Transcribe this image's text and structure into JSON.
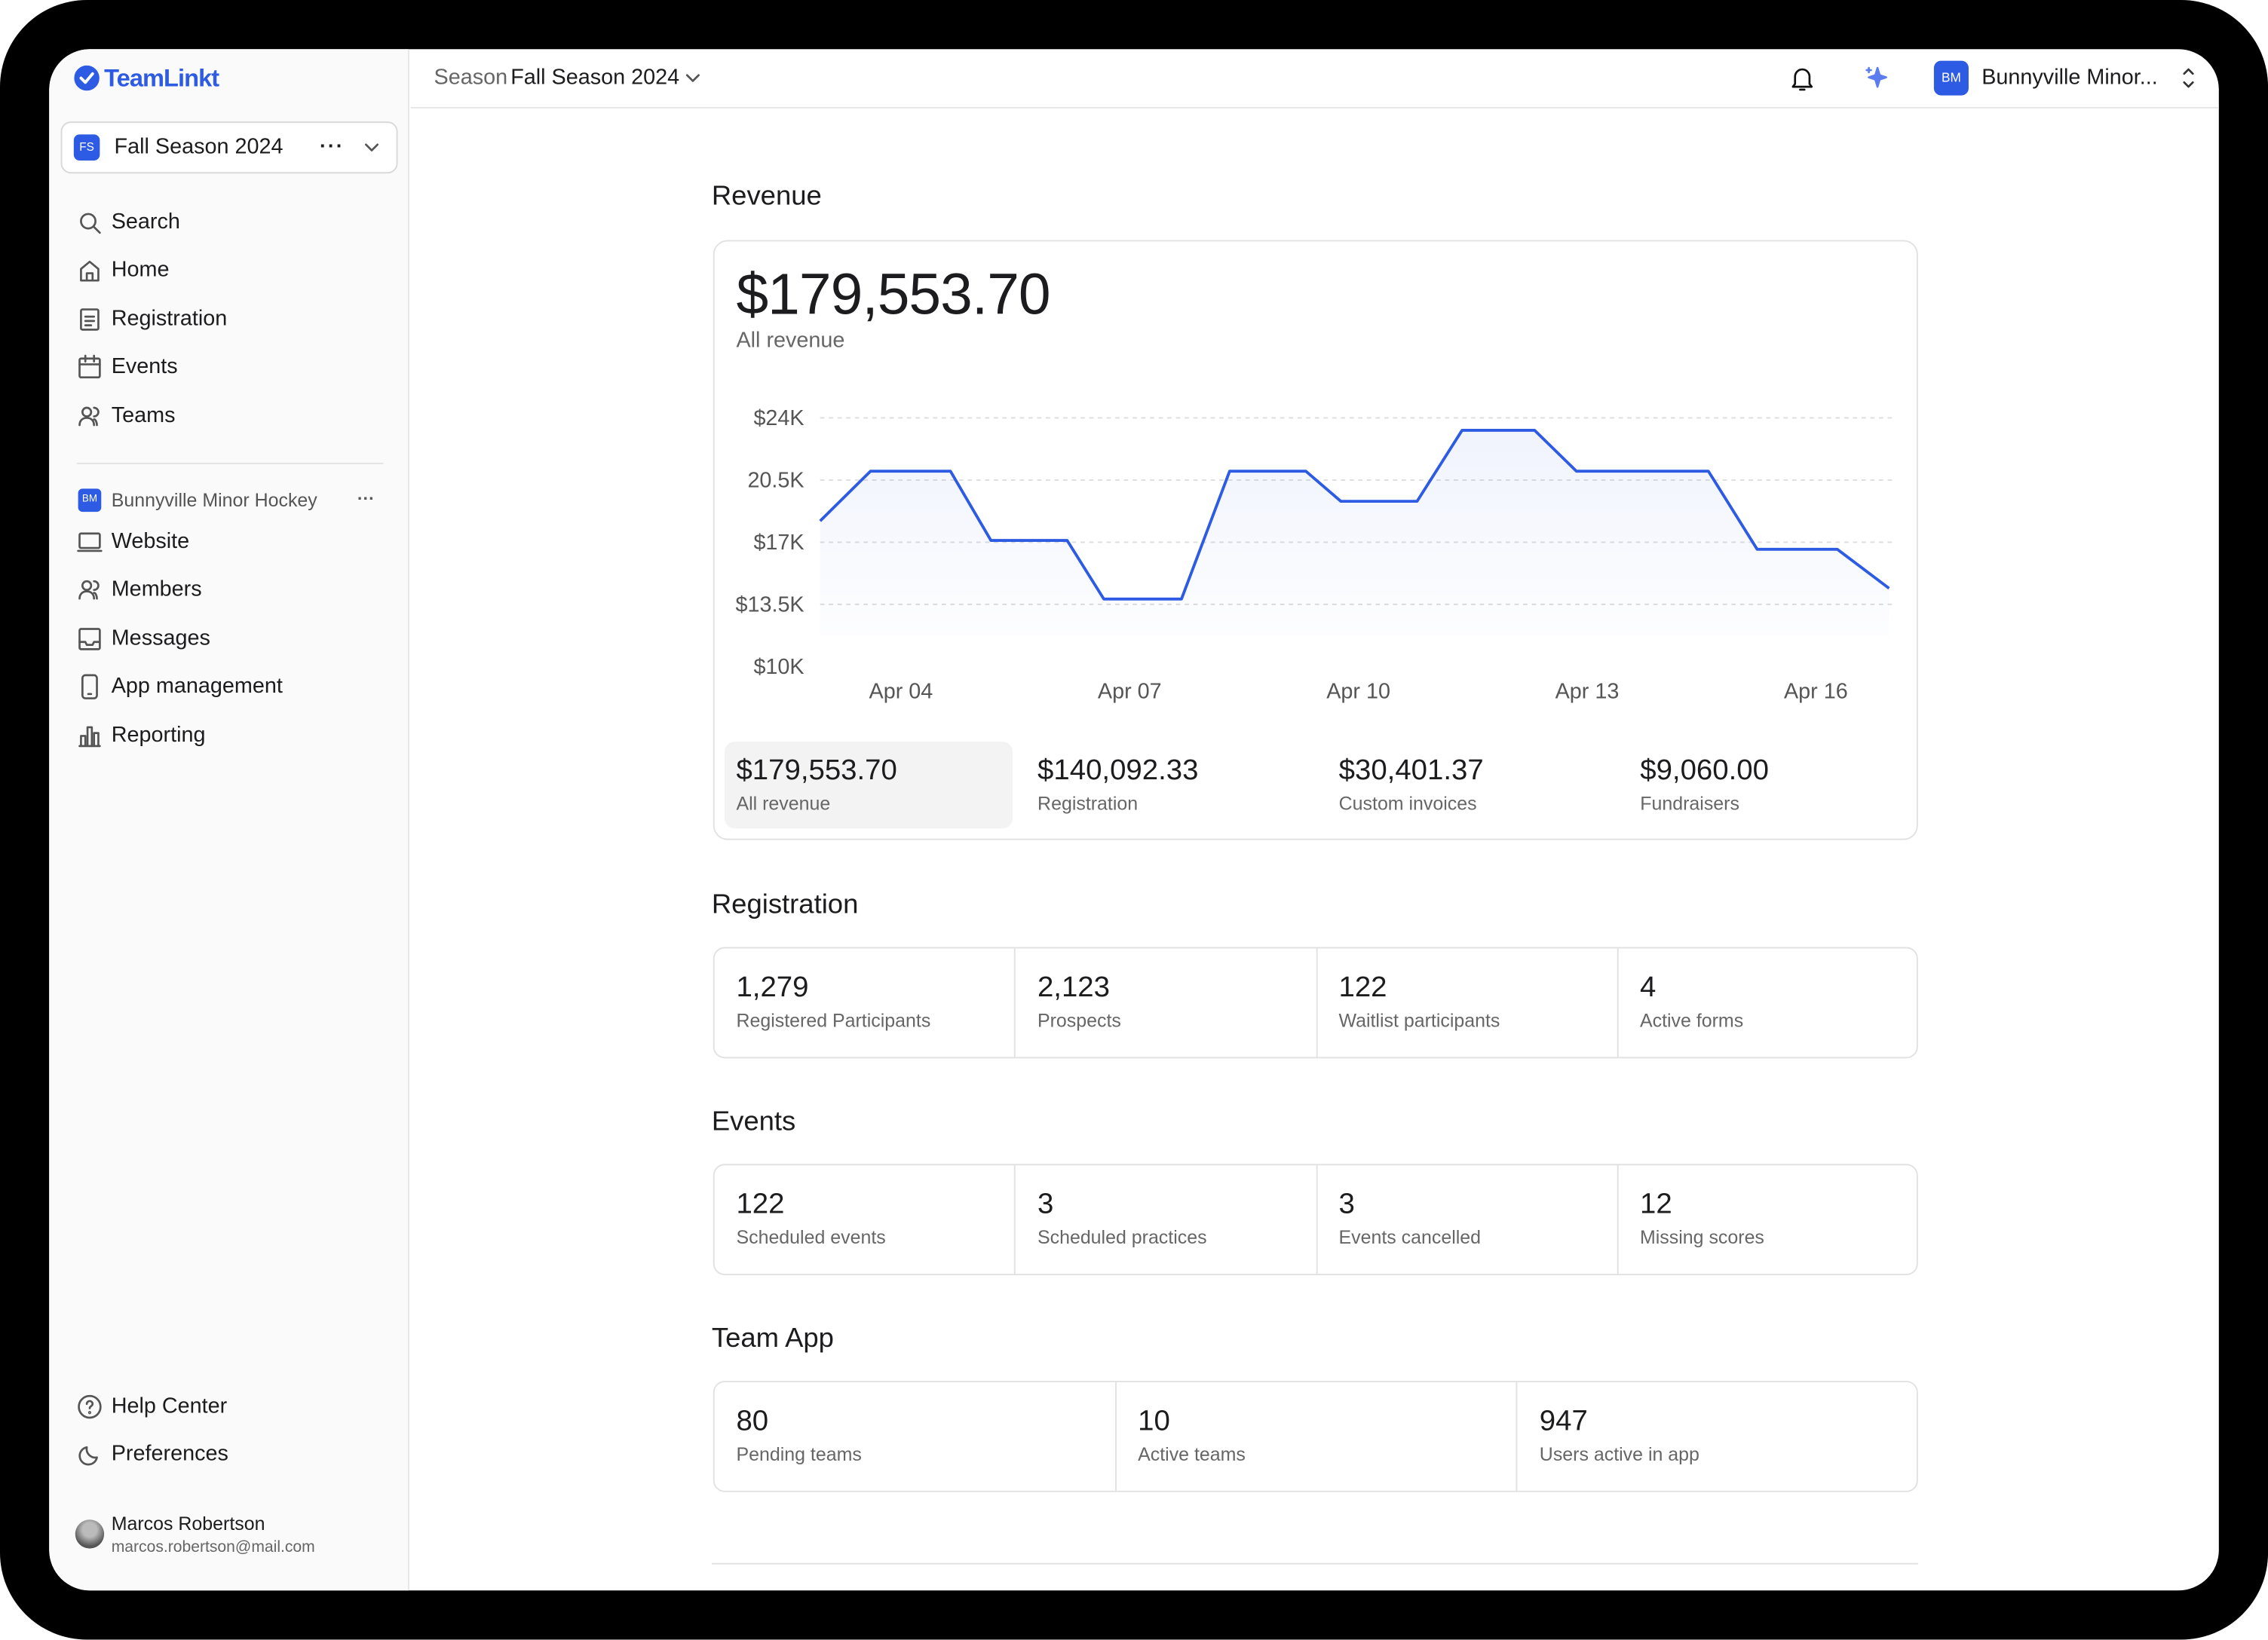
{
  "app": {
    "logo": "TeamLinkt",
    "season_label": "Season",
    "season": "Fall Season 2024",
    "org_initials": "BM",
    "org": "Bunnyville Minor..."
  },
  "sidebar": {
    "season_badge": "FS",
    "season": "Fall Season 2024",
    "nav": [
      "Search",
      "Home",
      "Registration",
      "Events",
      "Teams"
    ],
    "org_badge": "BM",
    "org_name": "Bunnyville Minor Hockey",
    "org_nav": [
      "Website",
      "Members",
      "Messages",
      "App management",
      "Reporting"
    ],
    "footer_nav": [
      "Help Center",
      "Preferences"
    ],
    "user": {
      "name": "Marcos Robertson",
      "email": "marcos.robertson@mail.com"
    }
  },
  "revenue": {
    "title": "Revenue",
    "total": "$179,553.70",
    "total_label": "All revenue",
    "breakdown": [
      {
        "value": "$179,553.70",
        "label": "All revenue"
      },
      {
        "value": "$140,092.33",
        "label": "Registration"
      },
      {
        "value": "$30,401.37",
        "label": "Custom invoices"
      },
      {
        "value": "$9,060.00",
        "label": "Fundraisers"
      }
    ]
  },
  "chart_data": {
    "type": "line",
    "x": [
      2.94,
      3.6,
      4.65,
      5.18,
      6.18,
      6.66,
      7.68,
      8.31,
      9.31,
      9.77,
      10.77,
      11.36,
      12.31,
      12.86,
      14.59,
      15.23,
      16.28,
      16.96
    ],
    "series": [
      {
        "color": "#2d5be3",
        "values": [
          18200,
          21000,
          21000,
          17100,
          17100,
          13800,
          13800,
          21000,
          21000,
          19300,
          19300,
          23300,
          23300,
          21000,
          21000,
          16600,
          16600,
          14400
        ]
      }
    ],
    "xlim": [
      2.94,
      16.96
    ],
    "xticks": [
      {
        "value": 4,
        "label": "Apr 04"
      },
      {
        "value": 7,
        "label": "Apr 07"
      },
      {
        "value": 10,
        "label": "Apr 10"
      },
      {
        "value": 13,
        "label": "Apr 13"
      },
      {
        "value": 16,
        "label": "Apr 16"
      }
    ],
    "ylim": [
      10000,
      24000
    ],
    "yticks": [
      {
        "value": 10000,
        "label": "$10K"
      },
      {
        "value": 13500,
        "label": "$13.5K"
      },
      {
        "value": 17000,
        "label": "$17K"
      },
      {
        "value": 20500,
        "label": "20.5K"
      },
      {
        "value": 24000,
        "label": "$24K"
      }
    ],
    "grid": true
  },
  "registration": {
    "title": "Registration",
    "stats": [
      {
        "value": "1,279",
        "label": "Registered Participants"
      },
      {
        "value": "2,123",
        "label": "Prospects"
      },
      {
        "value": "122",
        "label": "Waitlist participants"
      },
      {
        "value": "4",
        "label": "Active forms"
      }
    ]
  },
  "events": {
    "title": "Events",
    "stats": [
      {
        "value": "122",
        "label": "Scheduled events"
      },
      {
        "value": "3",
        "label": "Scheduled practices"
      },
      {
        "value": "3",
        "label": "Events cancelled"
      },
      {
        "value": "12",
        "label": "Missing scores"
      }
    ]
  },
  "team_app": {
    "title": "Team App",
    "stats": [
      {
        "value": "80",
        "label": "Pending teams"
      },
      {
        "value": "10",
        "label": "Active teams"
      },
      {
        "value": "947",
        "label": "Users active in app"
      }
    ]
  }
}
